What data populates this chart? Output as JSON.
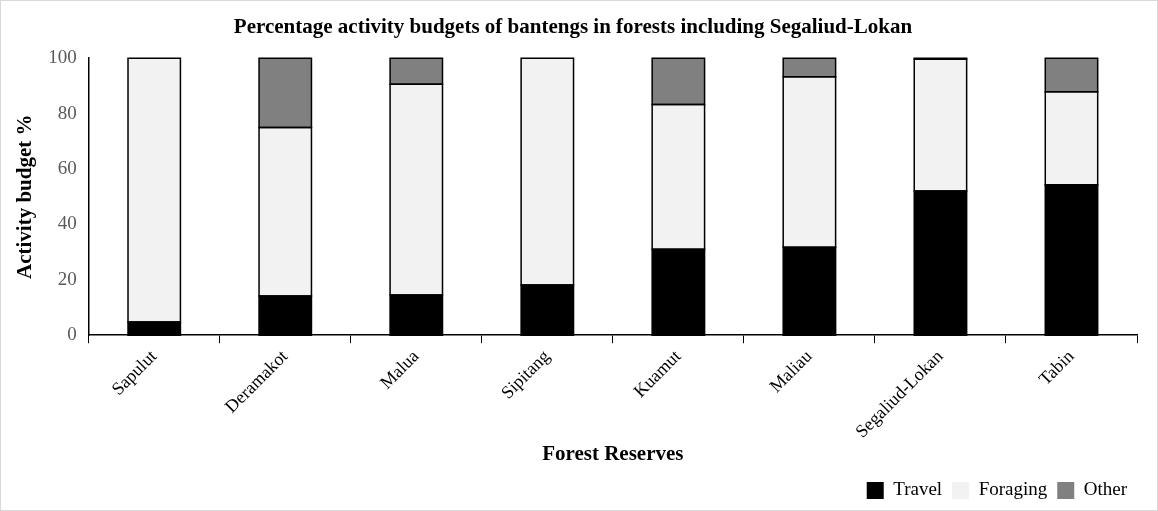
{
  "chart_data": {
    "type": "bar",
    "title": "Percentage activity budgets of bantengs in forests including Segaliud-Lokan",
    "xlabel": "Forest Reserves",
    "ylabel": "Activity budget %",
    "categories": [
      "Sapulut",
      "Deramakot",
      "Malua",
      "Sipitang",
      "Kuamut",
      "Maliau",
      "Segaliud-Lokan",
      "Tabin"
    ],
    "series": [
      {
        "name": "Travel",
        "color": "#000000",
        "values": [
          4.8,
          14.2,
          14.5,
          18.1,
          31.0,
          31.8,
          52.1,
          54.3
        ]
      },
      {
        "name": "Foraging",
        "color": "#f2f2f2",
        "values": [
          95.2,
          60.8,
          76.1,
          81.9,
          52.3,
          61.5,
          47.5,
          33.6
        ]
      },
      {
        "name": "Other",
        "color": "#808080",
        "values": [
          0,
          25.0,
          9.4,
          0,
          16.7,
          6.7,
          0.4,
          12.1
        ]
      }
    ],
    "stacked": true,
    "ylim": [
      0,
      100
    ],
    "yticks": [
      0,
      20,
      40,
      60,
      80,
      100
    ],
    "grid": false,
    "legend": "bottom right"
  }
}
